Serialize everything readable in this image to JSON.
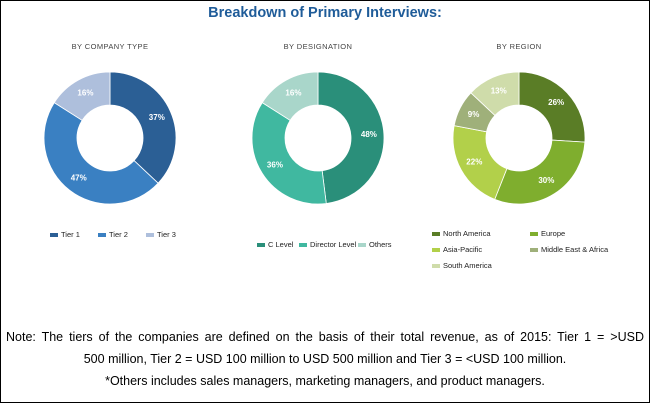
{
  "title": "Breakdown of Primary Interviews:",
  "chart_data": [
    {
      "type": "pie",
      "variant": "donut",
      "title": "BY COMPANY TYPE",
      "categories": [
        "Tier 1",
        "Tier 2",
        "Tier 3"
      ],
      "values": [
        37,
        47,
        16
      ],
      "labels": [
        "37%",
        "47%",
        "16%"
      ],
      "colors": [
        "#2b5f95",
        "#3a80c2",
        "#aebfdc"
      ],
      "legend_position": "bottom"
    },
    {
      "type": "pie",
      "variant": "donut",
      "title": "BY DESIGNATION",
      "categories": [
        "C Level",
        "Director Level",
        "Others"
      ],
      "values": [
        48,
        36,
        16
      ],
      "labels": [
        "48%",
        "36%",
        "16%"
      ],
      "colors": [
        "#2a8f7a",
        "#40b8a0",
        "#a9d6ca"
      ],
      "legend_position": "bottom"
    },
    {
      "type": "pie",
      "variant": "donut",
      "title": "BY REGION",
      "categories": [
        "North America",
        "Europe",
        "Asia-Pacific",
        "Middle East & Africa",
        "South America"
      ],
      "values": [
        26,
        30,
        22,
        9,
        13
      ],
      "labels": [
        "26%",
        "30%",
        "22%",
        "9%",
        "13%"
      ],
      "colors": [
        "#5a7d26",
        "#7fae2e",
        "#b2d04a",
        "#9fb07a",
        "#cfdcaa"
      ],
      "legend_position": "bottom"
    }
  ],
  "note": {
    "line1": "Note: The tiers of the companies are defined on the basis of their total revenue, as of 2015: Tier 1 = >USD",
    "line2": "500 million, Tier 2 = USD 100 million to USD 500 million and Tier 3 = <USD 100 million.",
    "line3": "*Others includes sales managers, marketing managers, and product managers."
  }
}
